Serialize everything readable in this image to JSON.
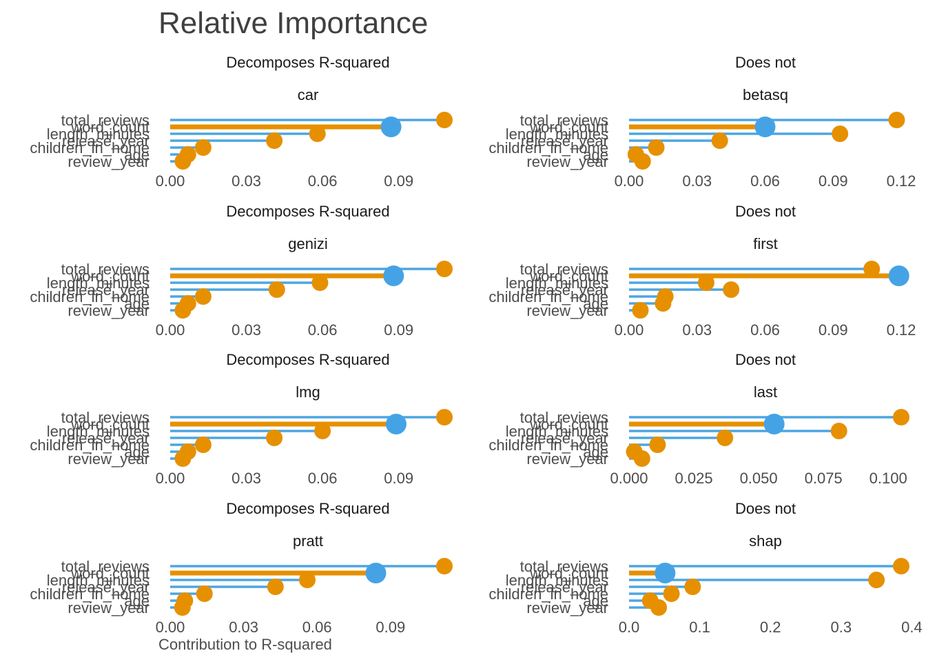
{
  "title": "Relative Importance",
  "xlabel": "Contribution to R-squared",
  "colors": {
    "bar": "#4da6e0",
    "point_blue": "#45a3e5",
    "point_orange": "#e69000"
  },
  "chart_data": [
    {
      "type": "lollipop",
      "group": "Decomposes R-squared",
      "method": "car",
      "categories": [
        "total_reviews",
        "word_count",
        "length_minutes",
        "release_year",
        "children_in_home",
        "age",
        "review_year"
      ],
      "values": [
        0.108,
        0.087,
        0.058,
        0.041,
        0.013,
        0.007,
        0.005
      ],
      "highlight": "word_count",
      "xlim": [
        0,
        0.108
      ],
      "ticks": [
        "0.00",
        "0.03",
        "0.06",
        "0.09"
      ],
      "tick_values": [
        0,
        0.03,
        0.06,
        0.09
      ]
    },
    {
      "type": "lollipop",
      "group": "Does not",
      "method": "betasq",
      "categories": [
        "total_reviews",
        "word_count",
        "length_minutes",
        "release_year",
        "children_in_home",
        "age",
        "review_year"
      ],
      "values": [
        0.118,
        0.06,
        0.093,
        0.04,
        0.012,
        0.003,
        0.006
      ],
      "highlight": "word_count",
      "xlim": [
        0,
        0.12
      ],
      "ticks": [
        "0.00",
        "0.03",
        "0.06",
        "0.09",
        "0.12"
      ],
      "tick_values": [
        0,
        0.03,
        0.06,
        0.09,
        0.12
      ]
    },
    {
      "type": "lollipop",
      "group": "Decomposes R-squared",
      "method": "genizi",
      "categories": [
        "total_reviews",
        "word_count",
        "length_minutes",
        "release_year",
        "children_in_home",
        "age",
        "review_year"
      ],
      "values": [
        0.108,
        0.088,
        0.059,
        0.042,
        0.013,
        0.007,
        0.005
      ],
      "highlight": "word_count",
      "xlim": [
        0,
        0.108
      ],
      "ticks": [
        "0.00",
        "0.03",
        "0.06",
        "0.09"
      ],
      "tick_values": [
        0,
        0.03,
        0.06,
        0.09
      ]
    },
    {
      "type": "lollipop",
      "group": "Does not",
      "method": "first",
      "categories": [
        "total_reviews",
        "word_count",
        "length_minutes",
        "release_year",
        "children_in_home",
        "age",
        "review_year"
      ],
      "values": [
        0.107,
        0.119,
        0.034,
        0.045,
        0.016,
        0.015,
        0.005
      ],
      "highlight": "word_count",
      "xlim": [
        0,
        0.12
      ],
      "ticks": [
        "0.00",
        "0.03",
        "0.06",
        "0.09",
        "0.12"
      ],
      "tick_values": [
        0,
        0.03,
        0.06,
        0.09,
        0.12
      ]
    },
    {
      "type": "lollipop",
      "group": "Decomposes R-squared",
      "method": "lmg",
      "categories": [
        "total_reviews",
        "word_count",
        "length_minutes",
        "release_year",
        "children_in_home",
        "age",
        "review_year"
      ],
      "values": [
        0.108,
        0.089,
        0.06,
        0.041,
        0.013,
        0.007,
        0.005
      ],
      "highlight": "word_count",
      "xlim": [
        0,
        0.108
      ],
      "ticks": [
        "0.00",
        "0.03",
        "0.06",
        "0.09"
      ],
      "tick_values": [
        0,
        0.03,
        0.06,
        0.09
      ]
    },
    {
      "type": "lollipop",
      "group": "Does not",
      "method": "last",
      "categories": [
        "total_reviews",
        "word_count",
        "length_minutes",
        "release_year",
        "children_in_home",
        "age",
        "review_year"
      ],
      "values": [
        0.105,
        0.056,
        0.081,
        0.037,
        0.011,
        0.002,
        0.005
      ],
      "highlight": "word_count",
      "xlim": [
        0,
        0.105
      ],
      "ticks": [
        "0.000",
        "0.025",
        "0.050",
        "0.075",
        "0.100"
      ],
      "tick_values": [
        0,
        0.025,
        0.05,
        0.075,
        0.1
      ]
    },
    {
      "type": "lollipop",
      "group": "Decomposes R-squared",
      "method": "pratt",
      "categories": [
        "total_reviews",
        "word_count",
        "length_minutes",
        "release_year",
        "children_in_home",
        "age",
        "review_year"
      ],
      "values": [
        0.112,
        0.084,
        0.056,
        0.043,
        0.014,
        0.006,
        0.005
      ],
      "highlight": "word_count",
      "xlim": [
        0,
        0.112
      ],
      "ticks": [
        "0.00",
        "0.03",
        "0.06",
        "0.09"
      ],
      "tick_values": [
        0,
        0.03,
        0.06,
        0.09
      ]
    },
    {
      "type": "lollipop",
      "group": "Does not",
      "method": "shap",
      "categories": [
        "total_reviews",
        "word_count",
        "length_minutes",
        "release_year",
        "children_in_home",
        "age",
        "review_year"
      ],
      "values": [
        0.385,
        0.051,
        0.35,
        0.09,
        0.06,
        0.03,
        0.042
      ],
      "highlight": "word_count",
      "xlim": [
        0,
        0.385
      ],
      "ticks": [
        "0.0",
        "0.1",
        "0.2",
        "0.3",
        "0.4"
      ],
      "tick_values": [
        0,
        0.1,
        0.2,
        0.3,
        0.4
      ]
    }
  ]
}
